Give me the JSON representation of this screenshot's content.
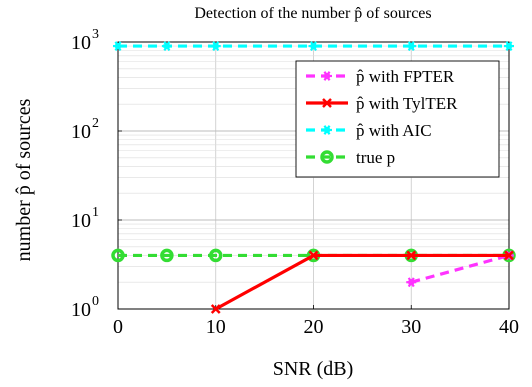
{
  "chart_data": {
    "type": "line",
    "title": "Detection of the number p̂ of sources",
    "xlabel": "SNR (dB)",
    "ylabel": "number p̂ of sources",
    "x_ticks": [
      "0",
      "10",
      "20",
      "30",
      "40"
    ],
    "y_ticks": [
      {
        "base": "10",
        "exp": "0"
      },
      {
        "base": "10",
        "exp": "1"
      },
      {
        "base": "10",
        "exp": "2"
      },
      {
        "base": "10",
        "exp": "3"
      }
    ],
    "xlim": [
      0,
      40
    ],
    "ylim": [
      1,
      1000
    ],
    "y_scale": "log",
    "grid": true,
    "legend_position": "top-right",
    "series": [
      {
        "name": "p̂ with FPTER",
        "color": "#ff33ff",
        "line_style": "dashed",
        "marker": "star",
        "x": [
          30,
          40
        ],
        "y": [
          2,
          4
        ]
      },
      {
        "name": "p̂ with TylTER",
        "color": "#ff0000",
        "line_style": "solid",
        "marker": "x",
        "x": [
          10,
          20,
          30,
          40
        ],
        "y": [
          1,
          4,
          4,
          4
        ]
      },
      {
        "name": "p̂ with AIC",
        "color": "#00ffff",
        "line_style": "dashed",
        "marker": "star",
        "x": [
          0,
          5,
          10,
          20,
          30,
          40
        ],
        "y": [
          900,
          900,
          900,
          900,
          900,
          900
        ]
      },
      {
        "name": "true p",
        "color": "#33dd33",
        "line_style": "dashed",
        "marker": "circle",
        "x": [
          0,
          5,
          10,
          20,
          30,
          40
        ],
        "y": [
          4,
          4,
          4,
          4,
          4,
          4
        ]
      }
    ]
  }
}
